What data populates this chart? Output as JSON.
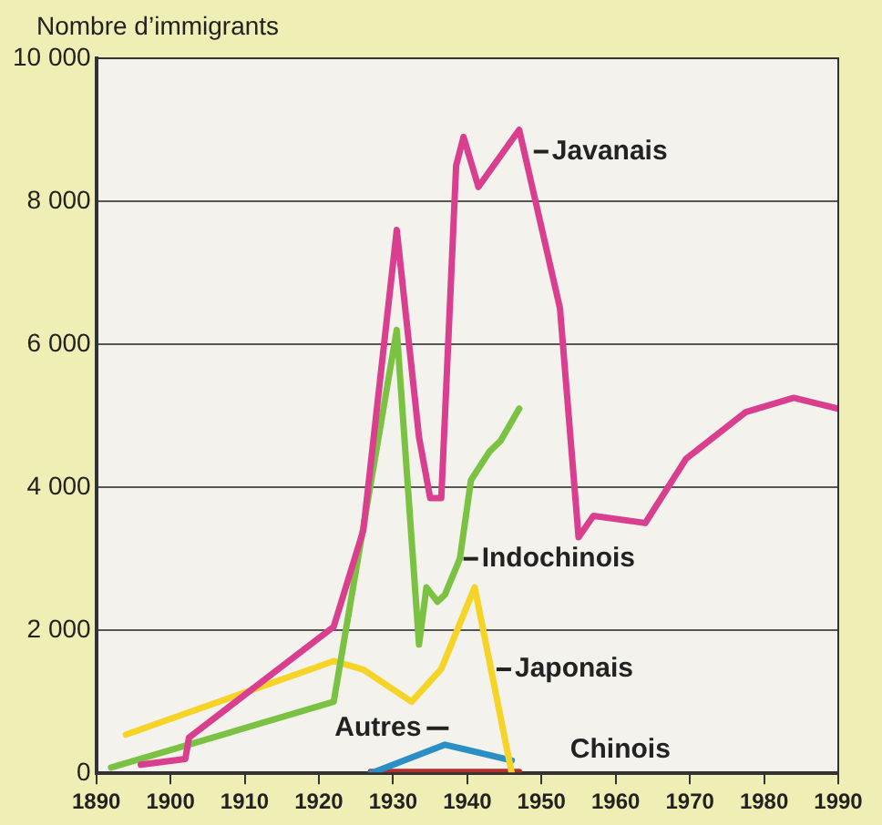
{
  "chart_data": {
    "type": "line",
    "ylabel": "Nombre d’immigrants",
    "xlim": [
      1890,
      1990
    ],
    "xticks": [
      1890,
      1900,
      1910,
      1920,
      1930,
      1940,
      1950,
      1960,
      1970,
      1980,
      1990
    ],
    "ylim": [
      0,
      10000
    ],
    "yticks": [
      0,
      {
        "value": 2000,
        "label": "2 000"
      },
      {
        "value": 4000,
        "label": "4 000"
      },
      {
        "value": 6000,
        "label": "6 000"
      },
      {
        "value": 8000,
        "label": "8 000"
      },
      {
        "value": 10000,
        "label": "10 000"
      }
    ],
    "grid": "y",
    "legend": false,
    "marker": "none",
    "line_style": "solid",
    "series": [
      {
        "name": "Javanais",
        "color": "#d93f8e",
        "x": [
          1896,
          1902,
          1902.5,
          1922,
          1926,
          1930.5,
          1933.5,
          1935,
          1936.5,
          1938.5,
          1939.5,
          1941.5,
          1947,
          1952.5,
          1955,
          1957,
          1964,
          1969.5,
          1977.5,
          1984,
          1990
        ],
        "values": [
          120,
          200,
          500,
          2050,
          3400,
          7600,
          4700,
          3850,
          3850,
          8500,
          8900,
          8200,
          9000,
          6500,
          3300,
          3600,
          3500,
          4400,
          5050,
          5250,
          5100
        ]
      },
      {
        "name": "Indochinois",
        "color": "#7cc242",
        "x": [
          1892,
          1922,
          1930.5,
          1933.5,
          1934.5,
          1936,
          1937,
          1939,
          1940.5,
          1943,
          1944.5,
          1947
        ],
        "values": [
          80,
          1000,
          6200,
          1800,
          2600,
          2400,
          2500,
          3000,
          4100,
          4500,
          4650,
          5100
        ]
      },
      {
        "name": "Japonais",
        "color": "#f5d327",
        "x": [
          1894,
          1922,
          1926,
          1932.5,
          1936.5,
          1941,
          1946
        ],
        "values": [
          540,
          1570,
          1450,
          1000,
          1460,
          2600,
          0
        ]
      },
      {
        "name": "Autres",
        "color": "#2a8fc4",
        "x": [
          1927,
          1937,
          1946
        ],
        "values": [
          0,
          400,
          180
        ]
      },
      {
        "name": "Chinois",
        "color": "#b0302e",
        "x": [
          1927,
          1947
        ],
        "values": [
          20,
          20
        ]
      }
    ]
  }
}
